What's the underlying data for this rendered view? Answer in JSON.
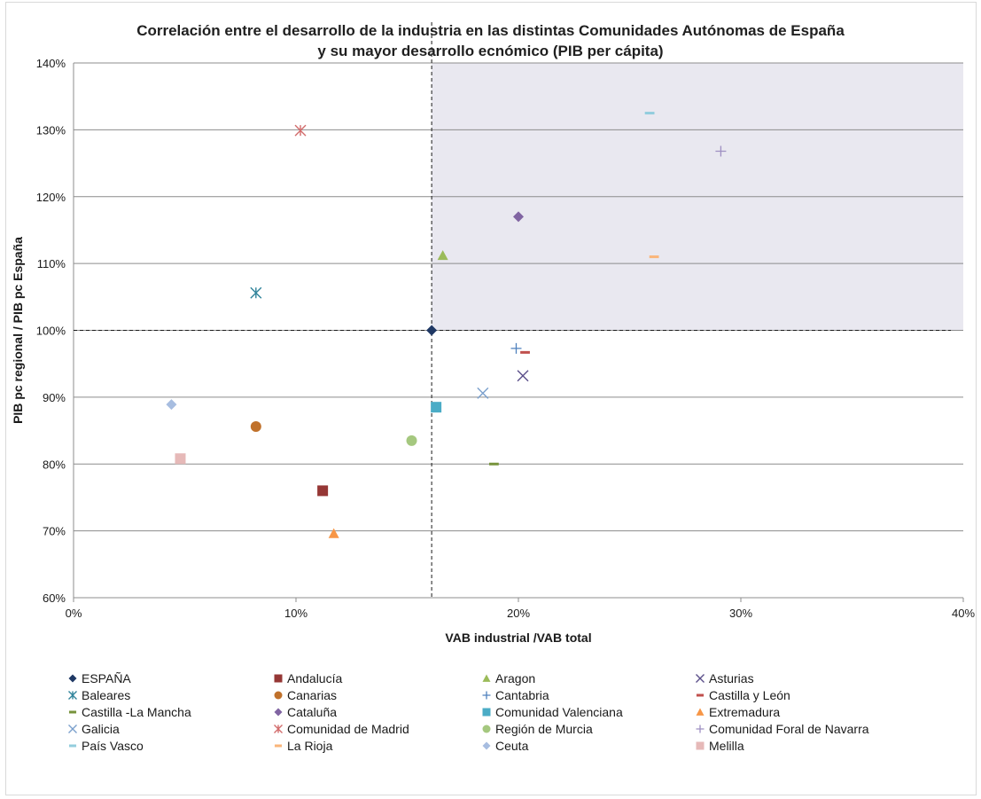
{
  "chart_data": {
    "type": "scatter",
    "title_lines": [
      "Correlación entre el desarrollo de la industria en las distintas Comunidades Autónomas de España",
      "y su mayor desarrollo ecnómico (PIB per cápita)"
    ],
    "xlabel": "VAB industrial /VAB total",
    "ylabel": "PIB pc regional / PIB pc España",
    "xlim": [
      0,
      0.4
    ],
    "ylim": [
      0.6,
      1.4
    ],
    "x_ticks": [
      "0%",
      "10%",
      "20%",
      "30%",
      "40%"
    ],
    "y_ticks": [
      "60%",
      "70%",
      "80%",
      "90%",
      "100%",
      "110%",
      "120%",
      "130%",
      "140%"
    ],
    "grid": "horizontal",
    "reference_lines": {
      "x": 0.161,
      "y": 1.0
    },
    "highlight_quadrant": "top-right",
    "legend_position": "bottom",
    "series": [
      {
        "name": "ESPAÑA",
        "x": 0.161,
        "y": 1.0,
        "marker": "diamond",
        "color": "#1f3864"
      },
      {
        "name": "Andalucía",
        "x": 0.112,
        "y": 0.76,
        "marker": "square",
        "color": "#953735"
      },
      {
        "name": "Aragon",
        "x": 0.166,
        "y": 1.112,
        "marker": "triangle",
        "color": "#9bbb59"
      },
      {
        "name": "Asturias",
        "x": 0.202,
        "y": 0.932,
        "marker": "x",
        "color": "#5b4f8a"
      },
      {
        "name": "Baleares",
        "x": 0.082,
        "y": 1.056,
        "marker": "star",
        "color": "#31849b"
      },
      {
        "name": "Canarias",
        "x": 0.082,
        "y": 0.856,
        "marker": "circle",
        "color": "#c0712b"
      },
      {
        "name": "Cantabria",
        "x": 0.199,
        "y": 0.973,
        "marker": "plus",
        "color": "#4f81bd"
      },
      {
        "name": "Castilla y León",
        "x": 0.203,
        "y": 0.967,
        "marker": "dash",
        "color": "#c0504d"
      },
      {
        "name": "Castilla -La Mancha",
        "x": 0.189,
        "y": 0.8,
        "marker": "dash",
        "color": "#77933c"
      },
      {
        "name": "Cataluña",
        "x": 0.2,
        "y": 1.17,
        "marker": "diamond",
        "color": "#8064a2"
      },
      {
        "name": "Comunidad Valenciana",
        "x": 0.163,
        "y": 0.885,
        "marker": "square",
        "color": "#4bacc6"
      },
      {
        "name": "Extremadura",
        "x": 0.117,
        "y": 0.696,
        "marker": "triangle",
        "color": "#f79646"
      },
      {
        "name": "Galicia",
        "x": 0.184,
        "y": 0.906,
        "marker": "x",
        "color": "#7ba0cd"
      },
      {
        "name": "Comunidad de Madrid",
        "x": 0.102,
        "y": 1.299,
        "marker": "star",
        "color": "#d26c6c"
      },
      {
        "name": "Región de Murcia",
        "x": 0.152,
        "y": 0.835,
        "marker": "circle",
        "color": "#a5c87f"
      },
      {
        "name": "Comunidad Foral de Navarra",
        "x": 0.291,
        "y": 1.268,
        "marker": "plus",
        "color": "#9e8fc2"
      },
      {
        "name": "País Vasco",
        "x": 0.259,
        "y": 1.325,
        "marker": "dash",
        "color": "#93cddd"
      },
      {
        "name": "La Rioja",
        "x": 0.261,
        "y": 1.11,
        "marker": "dash",
        "color": "#fab57a"
      },
      {
        "name": "Ceuta",
        "x": 0.044,
        "y": 0.889,
        "marker": "diamond",
        "color": "#a7bde0"
      },
      {
        "name": "Melilla",
        "x": 0.048,
        "y": 0.808,
        "marker": "square",
        "color": "#e6b9b8"
      }
    ]
  }
}
